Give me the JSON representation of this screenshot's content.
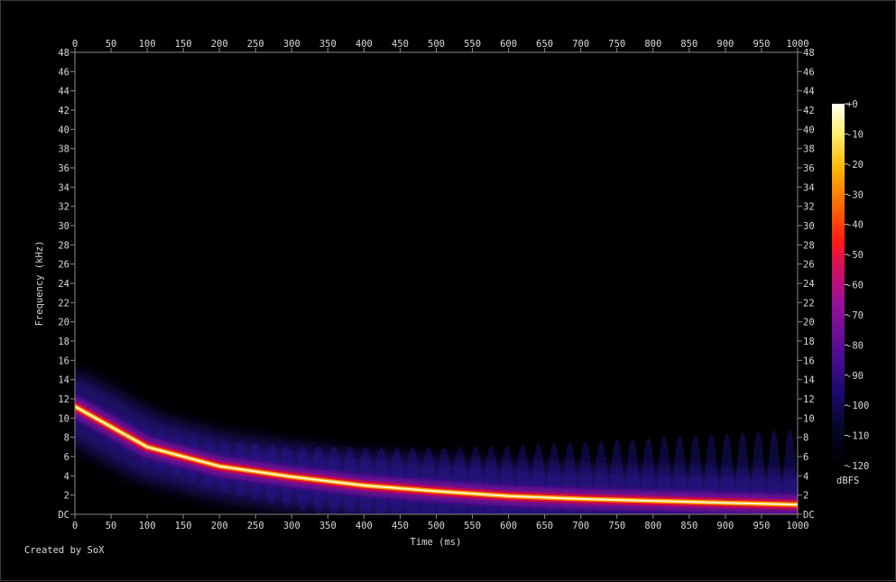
{
  "chart_data": {
    "type": "heatmap",
    "title": "",
    "xlabel": "Time (ms)",
    "ylabel": "Frequency (kHz)",
    "xlim": [
      0,
      1000
    ],
    "ylim": [
      0,
      48
    ],
    "x_ticks": [
      "0",
      "50",
      "100",
      "150",
      "200",
      "250",
      "300",
      "350",
      "400",
      "450",
      "500",
      "550",
      "600",
      "650",
      "700",
      "750",
      "800",
      "850",
      "900",
      "950",
      "1000"
    ],
    "y_ticks": [
      "DC",
      "2",
      "4",
      "6",
      "8",
      "10",
      "12",
      "14",
      "16",
      "18",
      "20",
      "22",
      "24",
      "26",
      "28",
      "30",
      "32",
      "34",
      "36",
      "38",
      "40",
      "42",
      "44",
      "46",
      "48"
    ],
    "colorbar": {
      "label": "dBFS",
      "ticks": [
        "+0",
        "-10",
        "-20",
        "-30",
        "-40",
        "-50",
        "-60",
        "-70",
        "-80",
        "-90",
        "-100",
        "-110",
        "-120"
      ],
      "range": [
        -120,
        0
      ]
    },
    "sweep": {
      "description": "exponential frequency sweep (chirp)",
      "time_ms": [
        0,
        100,
        200,
        300,
        400,
        500,
        600,
        700,
        800,
        900,
        1000
      ],
      "freq_khz": [
        11.2,
        7.0,
        5.0,
        3.9,
        3.0,
        2.4,
        1.9,
        1.6,
        1.4,
        1.2,
        1.0
      ],
      "peak_dbfs": 0
    }
  },
  "footer": {
    "credit": "Created by SoX"
  }
}
